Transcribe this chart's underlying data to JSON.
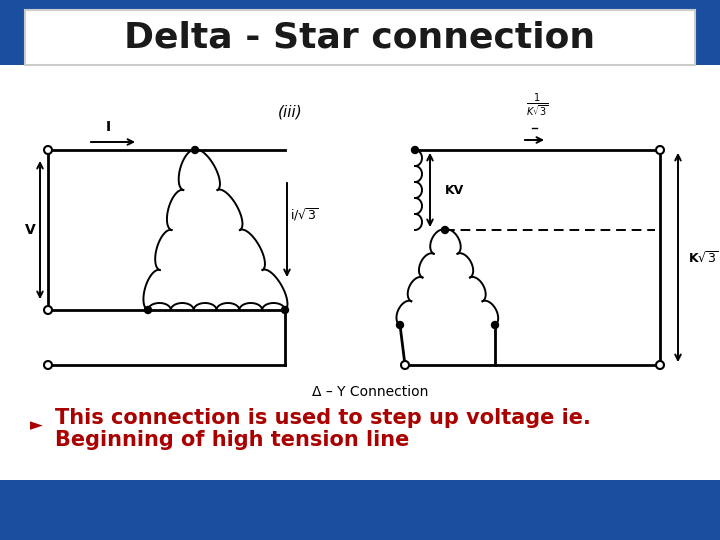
{
  "title": "Delta - Star connection",
  "title_fontsize": 26,
  "title_fontweight": "bold",
  "title_color": "#1a1a1a",
  "bg_color": "#1a4fa0",
  "white": "#ffffff",
  "content_bg": "#f5f5f5",
  "bullet_text_line1": "This connection is used to step up voltage ie.",
  "bullet_text_line2": "Beginning of high tension line",
  "bullet_color": "#aa0000",
  "bullet_fontsize": 15,
  "diagram_label": "Δ – Y Connection",
  "diagram_label_fontsize": 10,
  "sub_label": "(iii)",
  "sub_label_fontsize": 11
}
